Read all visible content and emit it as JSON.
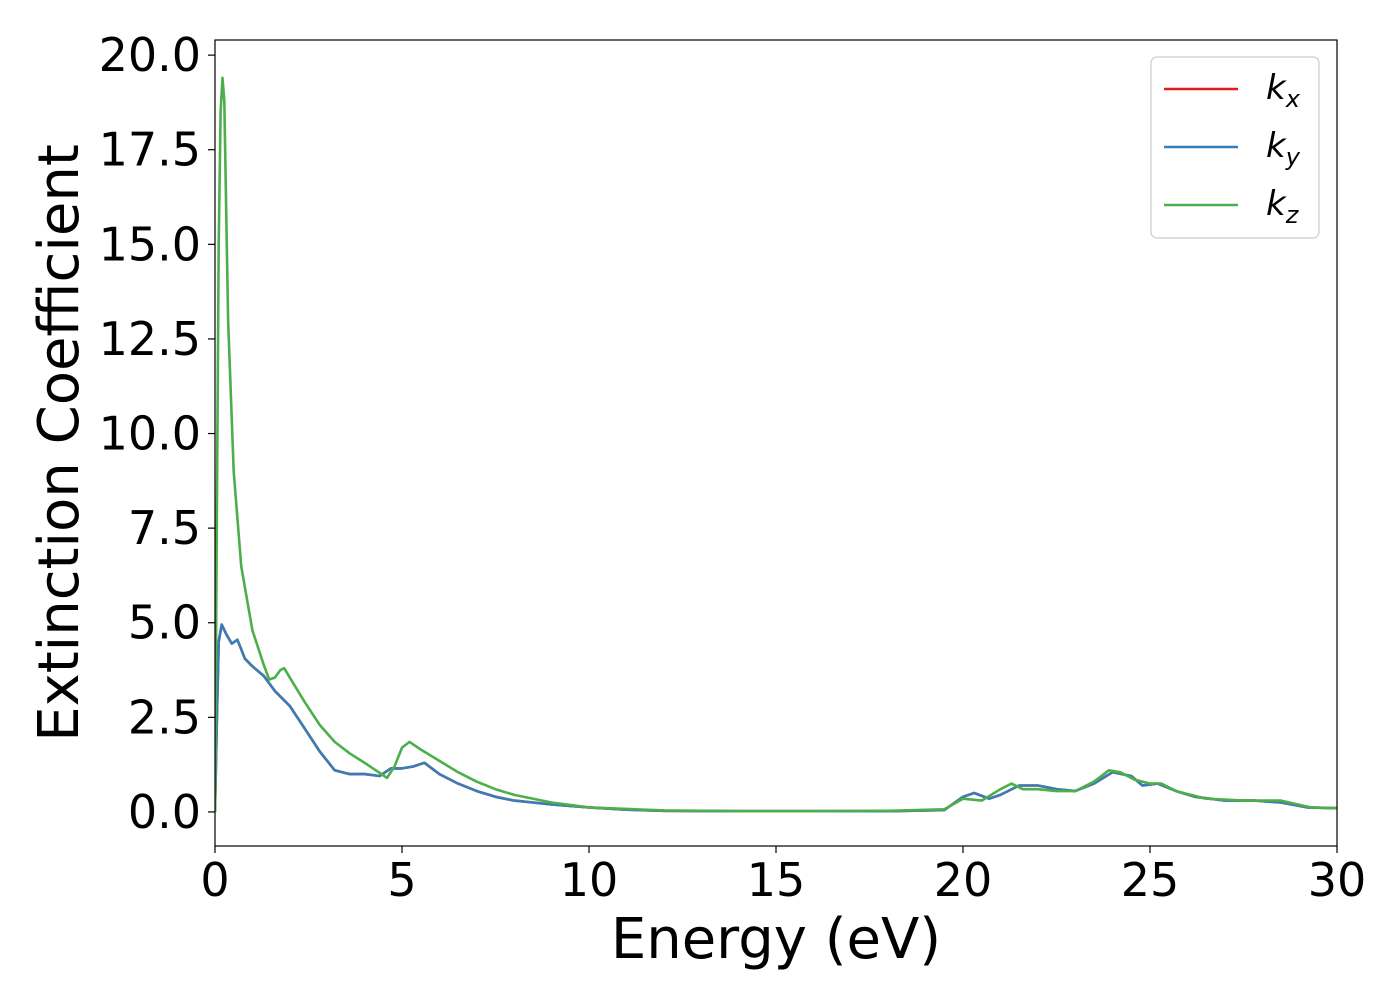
{
  "chart_data": {
    "type": "line",
    "title": "",
    "xlabel": "Energy (eV)",
    "ylabel": "Extinction Coefficient",
    "xlim": [
      0,
      30
    ],
    "ylim": [
      -0.9,
      20.4
    ],
    "xticks": [
      0,
      5,
      10,
      15,
      20,
      25,
      30
    ],
    "xtick_labels": [
      "0",
      "5",
      "10",
      "15",
      "20",
      "25",
      "30"
    ],
    "yticks": [
      0,
      2.5,
      5,
      7.5,
      10,
      12.5,
      15,
      17.5,
      20
    ],
    "ytick_labels": [
      "0.0",
      "2.5",
      "5.0",
      "7.5",
      "10.0",
      "12.5",
      "15.0",
      "17.5",
      "20.0"
    ],
    "grid": false,
    "legend_position": "top-right",
    "series": [
      {
        "name": "k",
        "subscript": "x",
        "color": "#e41a1c",
        "x": [
          0,
          0.05,
          0.1,
          0.18,
          0.3,
          0.45,
          0.6,
          0.7,
          0.8,
          1.0,
          1.3,
          1.6,
          2.0,
          2.4,
          2.8,
          3.2,
          3.6,
          4.0,
          4.4,
          4.7,
          5.0,
          5.3,
          5.6,
          6.0,
          6.5,
          7.0,
          7.5,
          8.0,
          8.5,
          9.0,
          10,
          11,
          12,
          14,
          16,
          18,
          19.5,
          20.0,
          20.3,
          20.7,
          21.0,
          21.5,
          22.0,
          22.5,
          23.0,
          23.5,
          24.0,
          24.5,
          24.8,
          25.2,
          25.7,
          26.2,
          27.0,
          27.8,
          28.5,
          29.2,
          30
        ],
        "y": [
          0,
          2.5,
          4.5,
          4.95,
          4.7,
          4.45,
          4.55,
          4.3,
          4.05,
          3.85,
          3.6,
          3.2,
          2.8,
          2.2,
          1.6,
          1.1,
          1.0,
          1.0,
          0.95,
          1.15,
          1.15,
          1.2,
          1.3,
          1.0,
          0.75,
          0.55,
          0.4,
          0.3,
          0.25,
          0.2,
          0.12,
          0.06,
          0.03,
          0.02,
          0.02,
          0.02,
          0.05,
          0.4,
          0.5,
          0.35,
          0.45,
          0.7,
          0.7,
          0.6,
          0.55,
          0.75,
          1.05,
          0.95,
          0.7,
          0.75,
          0.55,
          0.4,
          0.3,
          0.3,
          0.25,
          0.12,
          0.1
        ]
      },
      {
        "name": "k",
        "subscript": "y",
        "color": "#377eb8",
        "x": [
          0,
          0.05,
          0.1,
          0.18,
          0.3,
          0.45,
          0.6,
          0.7,
          0.8,
          1.0,
          1.3,
          1.6,
          2.0,
          2.4,
          2.8,
          3.2,
          3.6,
          4.0,
          4.4,
          4.7,
          5.0,
          5.3,
          5.6,
          6.0,
          6.5,
          7.0,
          7.5,
          8.0,
          8.5,
          9.0,
          10,
          11,
          12,
          14,
          16,
          18,
          19.5,
          20.0,
          20.3,
          20.7,
          21.0,
          21.5,
          22.0,
          22.5,
          23.0,
          23.5,
          24.0,
          24.5,
          24.8,
          25.2,
          25.7,
          26.2,
          27.0,
          27.8,
          28.5,
          29.2,
          30
        ],
        "y": [
          0,
          2.5,
          4.5,
          4.95,
          4.7,
          4.45,
          4.55,
          4.3,
          4.05,
          3.85,
          3.6,
          3.2,
          2.8,
          2.2,
          1.6,
          1.1,
          1.0,
          1.0,
          0.95,
          1.15,
          1.15,
          1.2,
          1.3,
          1.0,
          0.75,
          0.55,
          0.4,
          0.3,
          0.25,
          0.2,
          0.12,
          0.06,
          0.03,
          0.02,
          0.02,
          0.02,
          0.05,
          0.4,
          0.5,
          0.35,
          0.45,
          0.7,
          0.7,
          0.6,
          0.55,
          0.75,
          1.05,
          0.95,
          0.7,
          0.75,
          0.55,
          0.4,
          0.3,
          0.3,
          0.25,
          0.12,
          0.1
        ]
      },
      {
        "name": "k",
        "subscript": "z",
        "color": "#4daf4a",
        "x": [
          0,
          0.05,
          0.1,
          0.15,
          0.2,
          0.25,
          0.35,
          0.5,
          0.7,
          1.0,
          1.3,
          1.45,
          1.6,
          1.75,
          1.85,
          2.0,
          2.4,
          2.8,
          3.2,
          3.6,
          4.0,
          4.3,
          4.6,
          4.8,
          5.0,
          5.2,
          5.5,
          6.0,
          6.5,
          7.0,
          7.5,
          8.0,
          9.0,
          10,
          11,
          12,
          14,
          16,
          18,
          19.5,
          20.0,
          20.5,
          21.0,
          21.3,
          21.6,
          22.0,
          22.5,
          23.0,
          23.5,
          23.9,
          24.2,
          24.6,
          25.0,
          25.3,
          25.7,
          26.5,
          27.5,
          28.5,
          29.3,
          30
        ],
        "y": [
          0,
          8.0,
          15.0,
          18.5,
          19.4,
          18.8,
          13.0,
          9.0,
          6.5,
          4.8,
          3.9,
          3.5,
          3.55,
          3.75,
          3.8,
          3.55,
          2.9,
          2.3,
          1.85,
          1.55,
          1.3,
          1.1,
          0.9,
          1.2,
          1.7,
          1.85,
          1.65,
          1.35,
          1.05,
          0.8,
          0.6,
          0.45,
          0.25,
          0.12,
          0.08,
          0.04,
          0.02,
          0.02,
          0.03,
          0.07,
          0.35,
          0.3,
          0.6,
          0.75,
          0.6,
          0.6,
          0.55,
          0.55,
          0.8,
          1.1,
          1.05,
          0.85,
          0.75,
          0.75,
          0.55,
          0.35,
          0.3,
          0.3,
          0.12,
          0.1
        ]
      }
    ]
  }
}
